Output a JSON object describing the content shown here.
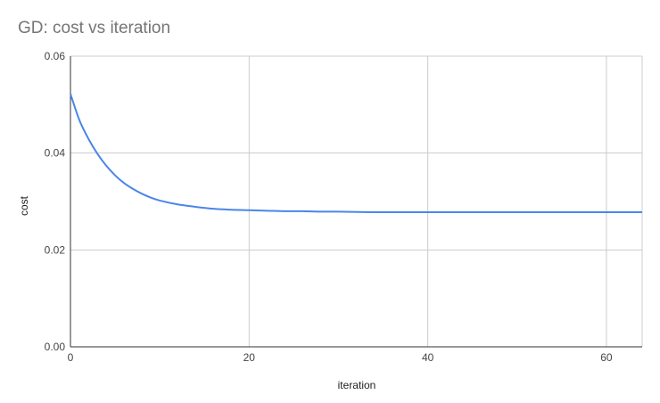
{
  "chart_data": {
    "type": "line",
    "title": "GD: cost vs iteration",
    "xlabel": "iteration",
    "ylabel": "cost",
    "xlim": [
      0,
      64
    ],
    "ylim": [
      0,
      0.06
    ],
    "x_ticks": [
      0,
      20,
      40,
      60
    ],
    "y_ticks": [
      0,
      0.02,
      0.04,
      0.06
    ],
    "y_tick_labels": [
      "0.00",
      "0.02",
      "0.04",
      "0.06"
    ],
    "x_tick_labels": [
      "0",
      "20",
      "40",
      "60"
    ],
    "grid": true,
    "series": [
      {
        "color": "#4a86e8",
        "x": [
          0,
          1,
          2,
          3,
          4,
          5,
          6,
          7,
          8,
          9,
          10,
          12,
          14,
          16,
          18,
          20,
          22,
          24,
          26,
          28,
          30,
          34,
          40,
          50,
          64
        ],
        "values": [
          0.0522,
          0.0468,
          0.043,
          0.0399,
          0.0374,
          0.0354,
          0.0338,
          0.0326,
          0.0316,
          0.0308,
          0.0302,
          0.0294,
          0.0289,
          0.0285,
          0.0283,
          0.0282,
          0.0281,
          0.028,
          0.028,
          0.0279,
          0.0279,
          0.0278,
          0.0278,
          0.0278,
          0.0278
        ]
      }
    ]
  }
}
